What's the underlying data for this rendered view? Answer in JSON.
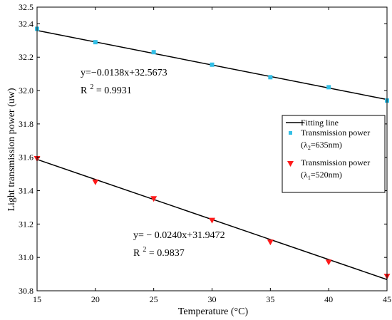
{
  "chart_data": {
    "type": "scatter",
    "xlabel": "Temperature (°C)",
    "ylabel": "Light transmission power (uw)",
    "xlim": [
      15,
      45
    ],
    "ylim": [
      30.8,
      32.5
    ],
    "xticks": [
      "15",
      "20",
      "25",
      "30",
      "35",
      "40",
      "45"
    ],
    "yticks": [
      "30.8",
      "31.0",
      "31.2",
      "31.4",
      "31.6",
      "31.8",
      "32.0",
      "32.2",
      "32.4",
      "32.5"
    ],
    "grid": false,
    "legend_position": "right",
    "legend": {
      "fit_label": "Fitting line",
      "series1_label_line1": "Transmission power",
      "series1_label_line2_pre": "(λ",
      "series1_label_sub": "2",
      "series1_label_line2_post": "=635nm)",
      "series2_label_line1": "Transmission power",
      "series2_label_line2_pre": "(λ",
      "series2_label_sub": "1",
      "series2_label_line2_post": "=520nm)"
    },
    "annotations": {
      "eq1": "y=−0.0138x+32.5673",
      "r1_pre": "R",
      "r1_sup": "2",
      "r1_post": " = 0.9931",
      "eq2": "y= − 0.0240x+31.9472",
      "r2_pre": "R",
      "r2_sup": "2",
      "r2_post": " = 0.9837"
    },
    "series": [
      {
        "marker": "square",
        "color": "#33bfe6",
        "x": [
          15,
          20,
          25,
          30,
          35,
          40,
          45
        ],
        "y": [
          32.37,
          32.29,
          32.23,
          32.155,
          32.08,
          32.02,
          31.94
        ],
        "fit": {
          "slope": -0.0138,
          "intercept": 32.5673
        }
      },
      {
        "marker": "triangle-down",
        "color": "#ff1a1a",
        "x": [
          15,
          20,
          25,
          30,
          35,
          40,
          45
        ],
        "y": [
          31.59,
          31.45,
          31.35,
          31.22,
          31.09,
          30.97,
          30.885
        ],
        "fit": {
          "slope": -0.024,
          "intercept": 31.9472
        }
      }
    ]
  }
}
